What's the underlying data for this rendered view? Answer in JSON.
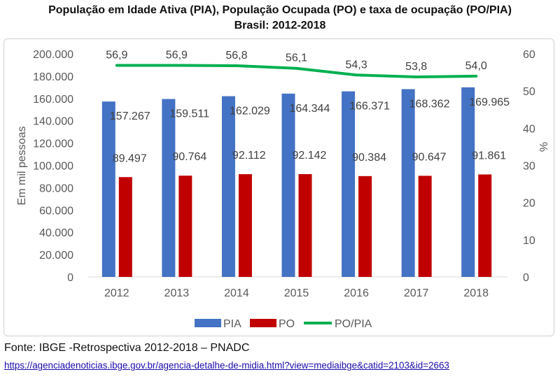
{
  "title_line1": "População em Idade Ativa (PIA), População Ocupada (PO) e taxa de ocupação (PO/PIA)",
  "title_line2": "Brasil: 2012-2018",
  "source": "Fonte: IBGE -Retrospectiva 2012-2018 – PNADC",
  "link": "https://agenciadenoticias.ibge.gov.br/agencia-detalhe-de-midia.html?view=mediaibge&catid=2103&id=2663",
  "chart_data": {
    "type": "bar",
    "categories": [
      "2012",
      "2013",
      "2014",
      "2015",
      "2016",
      "2017",
      "2018"
    ],
    "series": [
      {
        "name": "PIA",
        "type": "bar",
        "axis": "left",
        "color": "#4472c4",
        "values": [
          157267,
          159511,
          162029,
          164344,
          166371,
          168362,
          169965
        ],
        "labels": [
          "157.267",
          "159.511",
          "162.029",
          "164.344",
          "166.371",
          "168.362",
          "169.965"
        ]
      },
      {
        "name": "PO",
        "type": "bar",
        "axis": "left",
        "color": "#c00000",
        "values": [
          89497,
          90764,
          92112,
          92142,
          90384,
          90647,
          91861
        ],
        "labels": [
          "89.497",
          "90.764",
          "92.112",
          "92.142",
          "90.384",
          "90.647",
          "91.861"
        ]
      },
      {
        "name": "PO/PIA",
        "type": "line",
        "axis": "right",
        "color": "#00b050",
        "values": [
          56.9,
          56.9,
          56.8,
          56.1,
          54.3,
          53.8,
          54.0
        ],
        "labels": [
          "56,9",
          "56,9",
          "56,8",
          "56,1",
          "54,3",
          "53,8",
          "54,0"
        ]
      }
    ],
    "ylabel_left": "Em mil pessoas",
    "ylabel_right": "%",
    "ylim_left": [
      0,
      200000
    ],
    "ylim_right": [
      0,
      60
    ],
    "yticks_left": [
      "0",
      "20.000",
      "40.000",
      "60.000",
      "80.000",
      "100.000",
      "120.000",
      "140.000",
      "160.000",
      "180.000",
      "200.000"
    ],
    "yticks_right": [
      "0",
      "10",
      "20",
      "30",
      "40",
      "50",
      "60"
    ],
    "grid": false,
    "legend_position": "bottom"
  }
}
